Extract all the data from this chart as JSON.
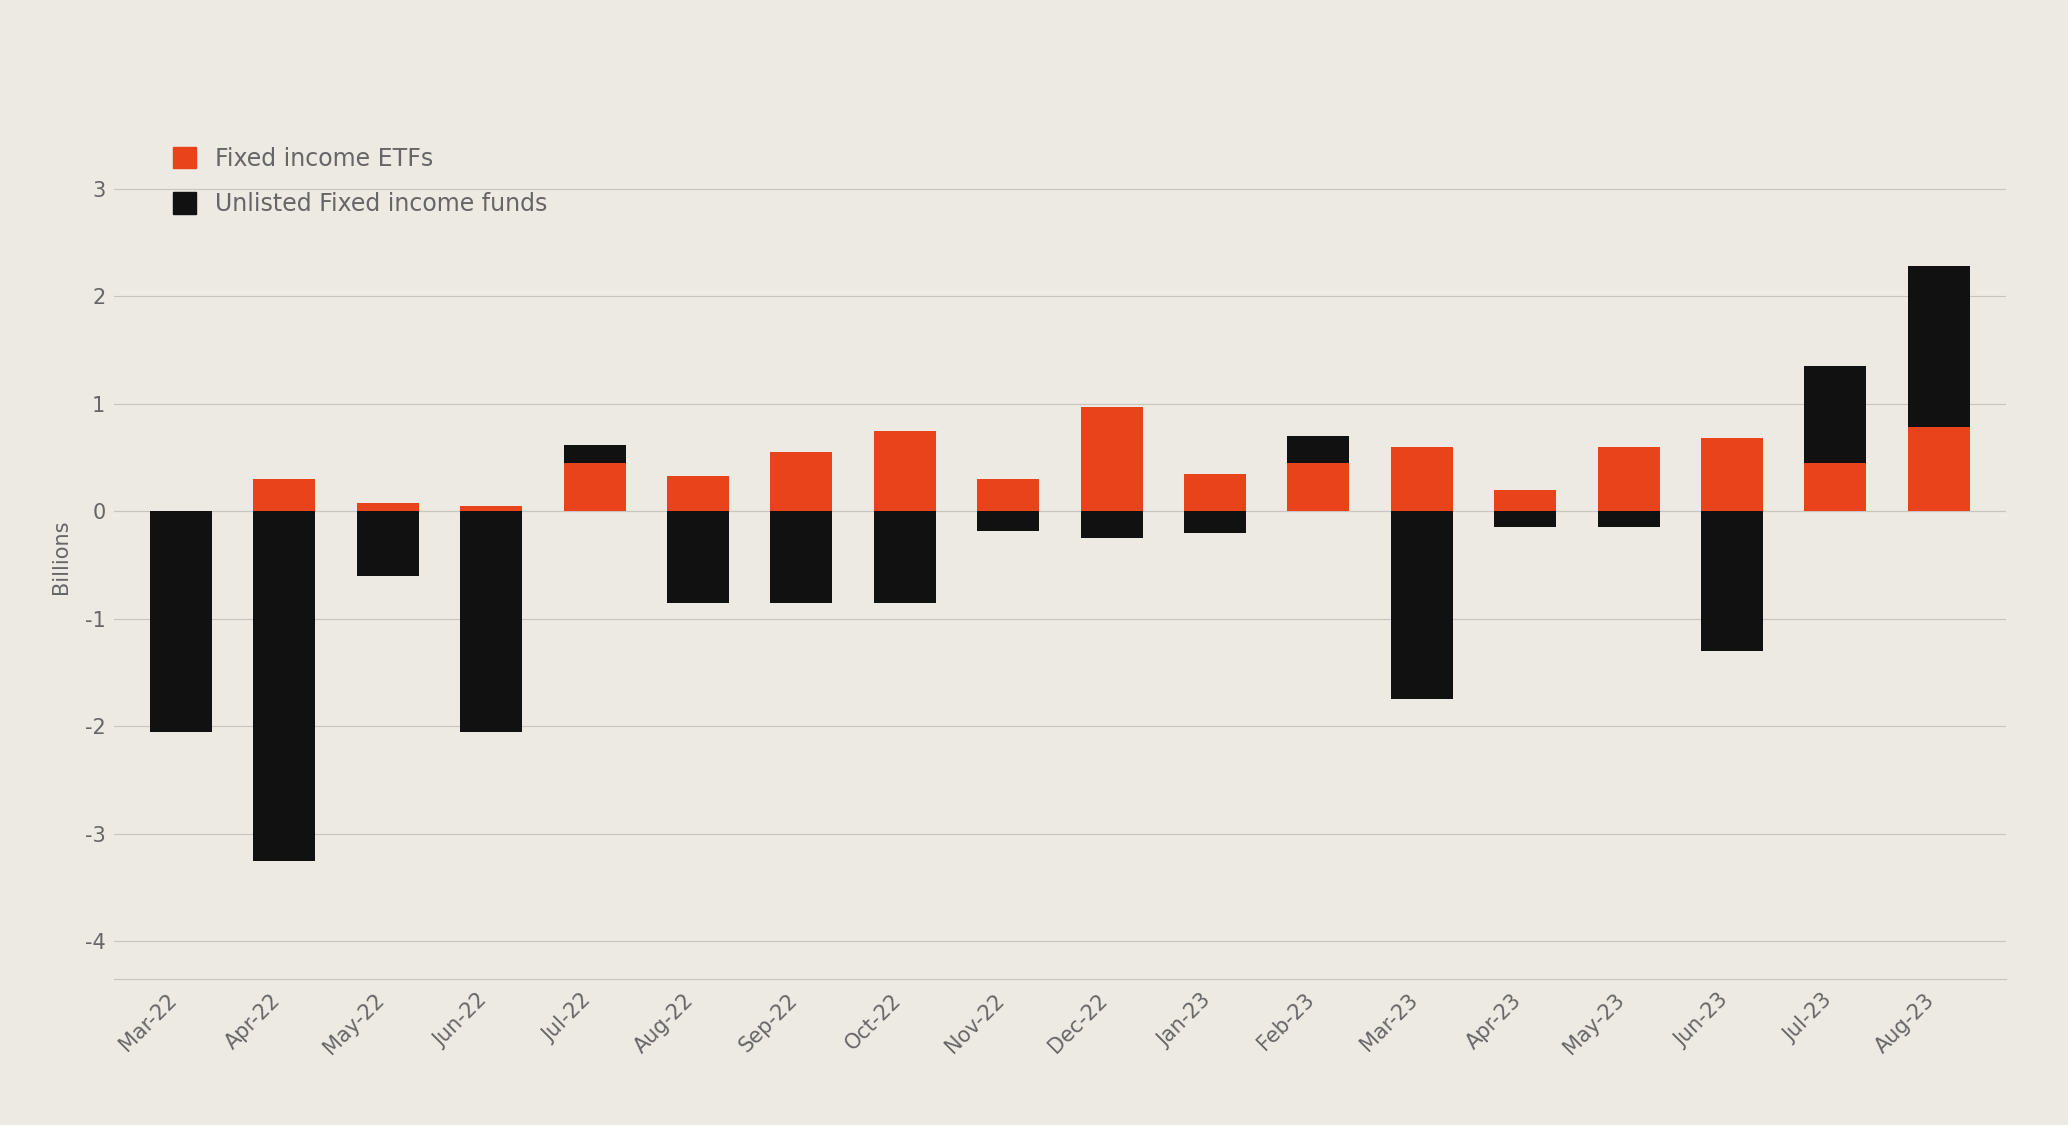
{
  "categories": [
    "Mar-22",
    "Apr-22",
    "May-22",
    "Jun-22",
    "Jul-22",
    "Aug-22",
    "Sep-22",
    "Oct-22",
    "Nov-22",
    "Dec-22",
    "Jan-23",
    "Feb-23",
    "Mar-23",
    "Apr-23",
    "May-23",
    "Jun-23",
    "Jul-23",
    "Aug-23"
  ],
  "etf_values": [
    -0.05,
    0.3,
    0.08,
    0.05,
    0.45,
    0.33,
    0.55,
    0.75,
    0.3,
    0.97,
    0.35,
    0.45,
    0.6,
    0.2,
    0.6,
    0.68,
    0.45,
    0.78
  ],
  "unlisted_values": [
    -2.05,
    -3.25,
    -0.6,
    -2.05,
    0.17,
    -0.85,
    -0.85,
    -0.85,
    -0.18,
    -0.25,
    -0.2,
    0.25,
    -1.75,
    -0.15,
    -0.15,
    -1.3,
    0.9,
    1.5
  ],
  "etf_color": "#E8431A",
  "unlisted_color": "#111111",
  "background_color": "#EDE9E3",
  "grid_color": "#C8C5C0",
  "ylabel": "Billions",
  "ylim": [
    -4.35,
    3.5
  ],
  "yticks": [
    -4,
    -3,
    -2,
    -1,
    0,
    1,
    2,
    3
  ],
  "legend_etf": "Fixed income ETFs",
  "legend_unlisted": "Unlisted Fixed income funds",
  "bar_width": 0.6,
  "text_color": "#666666",
  "tick_fontsize": 15,
  "legend_fontsize": 17,
  "ylabel_fontsize": 15
}
